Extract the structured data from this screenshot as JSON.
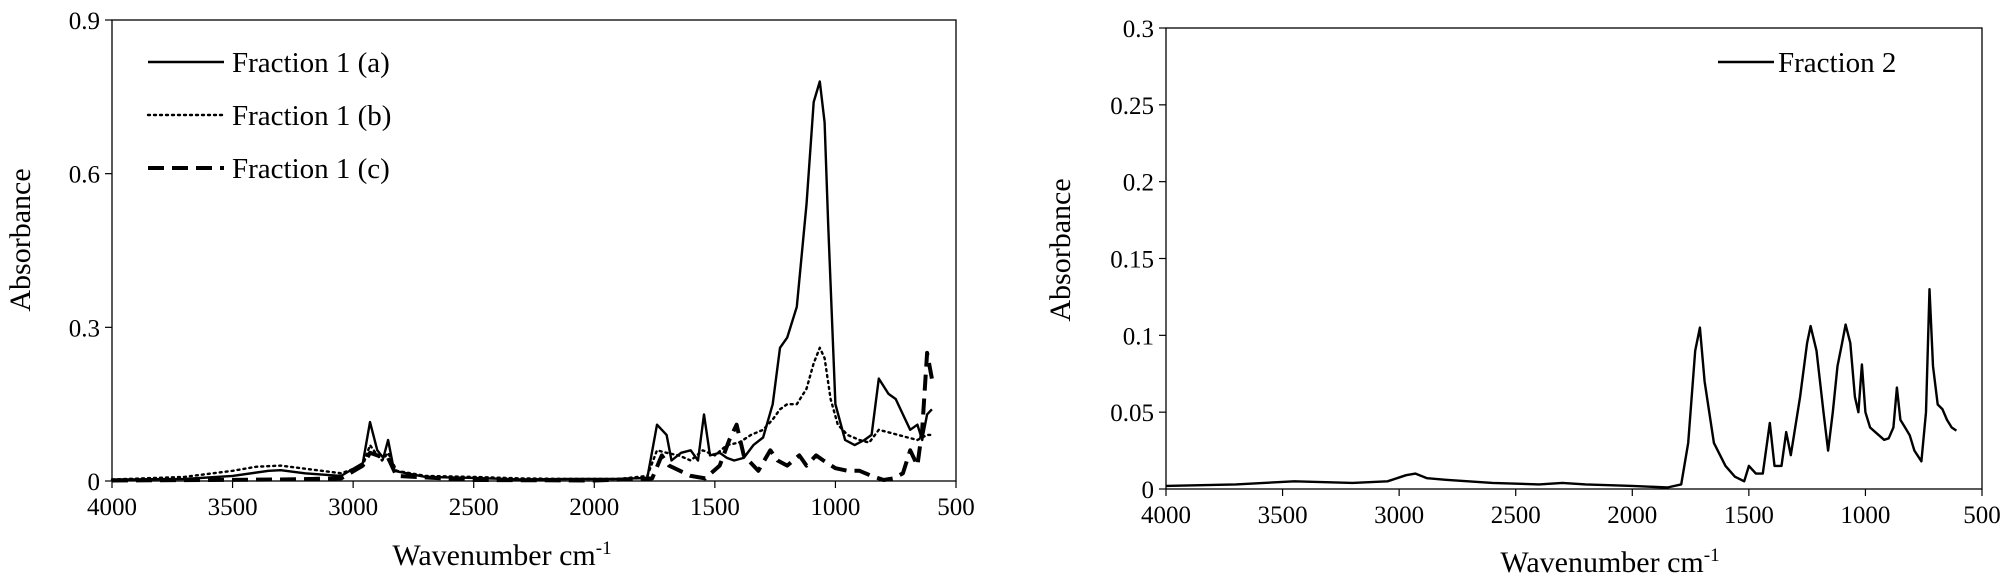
{
  "chart_data": [
    {
      "type": "line",
      "xlabel": "Wavenumber cm",
      "xlabel_sup": "-1",
      "ylabel": "Absorbance",
      "xlim": [
        4000,
        500
      ],
      "ylim": [
        0,
        0.9
      ],
      "x_reversed": true,
      "xticks": [
        4000,
        3500,
        3000,
        2500,
        2000,
        1500,
        1000,
        500
      ],
      "yticks": [
        0,
        0.3,
        0.6,
        0.9
      ],
      "ytick_labels": [
        "0",
        "0.3",
        "0.6",
        "0.9"
      ],
      "grid": false,
      "legend_position": "top-left",
      "series": [
        {
          "name": "Fraction 1 (a)",
          "style": "solid",
          "color": "#000000",
          "points": [
            [
              4000,
              0.003
            ],
            [
              3700,
              0.004
            ],
            [
              3500,
              0.01
            ],
            [
              3350,
              0.02
            ],
            [
              3300,
              0.021
            ],
            [
              3200,
              0.015
            ],
            [
              3050,
              0.01
            ],
            [
              2960,
              0.035
            ],
            [
              2930,
              0.115
            ],
            [
              2900,
              0.06
            ],
            [
              2875,
              0.045
            ],
            [
              2855,
              0.08
            ],
            [
              2830,
              0.02
            ],
            [
              2700,
              0.008
            ],
            [
              2500,
              0.006
            ],
            [
              2300,
              0.003
            ],
            [
              2100,
              0.004
            ],
            [
              1900,
              0.004
            ],
            [
              1780,
              0.006
            ],
            [
              1740,
              0.11
            ],
            [
              1700,
              0.09
            ],
            [
              1680,
              0.04
            ],
            [
              1640,
              0.055
            ],
            [
              1600,
              0.06
            ],
            [
              1570,
              0.04
            ],
            [
              1545,
              0.13
            ],
            [
              1520,
              0.05
            ],
            [
              1480,
              0.055
            ],
            [
              1450,
              0.045
            ],
            [
              1420,
              0.04
            ],
            [
              1380,
              0.045
            ],
            [
              1340,
              0.07
            ],
            [
              1300,
              0.085
            ],
            [
              1260,
              0.15
            ],
            [
              1230,
              0.26
            ],
            [
              1200,
              0.28
            ],
            [
              1160,
              0.34
            ],
            [
              1120,
              0.54
            ],
            [
              1090,
              0.74
            ],
            [
              1065,
              0.78
            ],
            [
              1045,
              0.7
            ],
            [
              1030,
              0.5
            ],
            [
              1000,
              0.15
            ],
            [
              960,
              0.08
            ],
            [
              920,
              0.07
            ],
            [
              880,
              0.08
            ],
            [
              850,
              0.09
            ],
            [
              820,
              0.2
            ],
            [
              780,
              0.17
            ],
            [
              750,
              0.16
            ],
            [
              720,
              0.13
            ],
            [
              690,
              0.1
            ],
            [
              660,
              0.11
            ],
            [
              640,
              0.08
            ],
            [
              620,
              0.13
            ],
            [
              600,
              0.14
            ]
          ]
        },
        {
          "name": "Fraction 1 (b)",
          "style": "dotted",
          "color": "#000000",
          "points": [
            [
              4000,
              0.003
            ],
            [
              3700,
              0.008
            ],
            [
              3500,
              0.02
            ],
            [
              3400,
              0.028
            ],
            [
              3300,
              0.03
            ],
            [
              3200,
              0.024
            ],
            [
              3050,
              0.015
            ],
            [
              2960,
              0.03
            ],
            [
              2930,
              0.07
            ],
            [
              2900,
              0.05
            ],
            [
              2880,
              0.04
            ],
            [
              2855,
              0.055
            ],
            [
              2820,
              0.02
            ],
            [
              2700,
              0.01
            ],
            [
              2500,
              0.008
            ],
            [
              2300,
              0.005
            ],
            [
              2100,
              0.004
            ],
            [
              1900,
              0.004
            ],
            [
              1780,
              0.01
            ],
            [
              1740,
              0.06
            ],
            [
              1700,
              0.055
            ],
            [
              1650,
              0.05
            ],
            [
              1600,
              0.04
            ],
            [
              1550,
              0.06
            ],
            [
              1500,
              0.05
            ],
            [
              1450,
              0.07
            ],
            [
              1400,
              0.075
            ],
            [
              1350,
              0.09
            ],
            [
              1300,
              0.1
            ],
            [
              1260,
              0.12
            ],
            [
              1230,
              0.14
            ],
            [
              1200,
              0.15
            ],
            [
              1160,
              0.15
            ],
            [
              1120,
              0.18
            ],
            [
              1090,
              0.23
            ],
            [
              1065,
              0.26
            ],
            [
              1045,
              0.24
            ],
            [
              1020,
              0.16
            ],
            [
              990,
              0.11
            ],
            [
              950,
              0.09
            ],
            [
              900,
              0.08
            ],
            [
              860,
              0.075
            ],
            [
              820,
              0.1
            ],
            [
              780,
              0.095
            ],
            [
              740,
              0.09
            ],
            [
              700,
              0.085
            ],
            [
              660,
              0.08
            ],
            [
              620,
              0.09
            ],
            [
              600,
              0.09
            ]
          ]
        },
        {
          "name": "Fraction 1 (c)",
          "style": "dashed",
          "color": "#000000",
          "points": [
            [
              4000,
              0.001
            ],
            [
              3600,
              0.002
            ],
            [
              3300,
              0.003
            ],
            [
              3050,
              0.005
            ],
            [
              2960,
              0.03
            ],
            [
              2930,
              0.055
            ],
            [
              2900,
              0.05
            ],
            [
              2855,
              0.045
            ],
            [
              2820,
              0.01
            ],
            [
              2500,
              0.002
            ],
            [
              2000,
              0.001
            ],
            [
              1760,
              0.005
            ],
            [
              1720,
              0.05
            ],
            [
              1690,
              0.03
            ],
            [
              1600,
              0.01
            ],
            [
              1540,
              0.005
            ],
            [
              1480,
              0.03
            ],
            [
              1440,
              0.08
            ],
            [
              1410,
              0.11
            ],
            [
              1380,
              0.05
            ],
            [
              1320,
              0.02
            ],
            [
              1270,
              0.06
            ],
            [
              1240,
              0.04
            ],
            [
              1200,
              0.03
            ],
            [
              1150,
              0.05
            ],
            [
              1120,
              0.03
            ],
            [
              1080,
              0.05
            ],
            [
              1050,
              0.04
            ],
            [
              1000,
              0.025
            ],
            [
              950,
              0.02
            ],
            [
              900,
              0.02
            ],
            [
              850,
              0.01
            ],
            [
              800,
              0.002
            ],
            [
              760,
              0.005
            ],
            [
              720,
              0.015
            ],
            [
              690,
              0.06
            ],
            [
              660,
              0.03
            ],
            [
              640,
              0.1
            ],
            [
              620,
              0.25
            ],
            [
              600,
              0.2
            ]
          ]
        }
      ]
    },
    {
      "type": "line",
      "xlabel": "Wavenumber cm",
      "xlabel_sup": "-1",
      "ylabel": "Absorbance",
      "xlim": [
        4000,
        500
      ],
      "ylim": [
        0,
        0.3
      ],
      "x_reversed": true,
      "xticks": [
        4000,
        3500,
        3000,
        2500,
        2000,
        1500,
        1000,
        500
      ],
      "yticks": [
        0,
        0.05,
        0.1,
        0.15,
        0.2,
        0.25,
        0.3
      ],
      "ytick_labels": [
        "0",
        "0.05",
        "0.1",
        "0.15",
        "0.2",
        "0.25",
        "0.3"
      ],
      "grid": false,
      "legend_position": "top-right",
      "series": [
        {
          "name": "Fraction 2",
          "style": "solid",
          "color": "#000000",
          "points": [
            [
              4000,
              0.002
            ],
            [
              3700,
              0.003
            ],
            [
              3450,
              0.005
            ],
            [
              3200,
              0.004
            ],
            [
              3050,
              0.005
            ],
            [
              2970,
              0.009
            ],
            [
              2930,
              0.01
            ],
            [
              2880,
              0.007
            ],
            [
              2800,
              0.006
            ],
            [
              2600,
              0.004
            ],
            [
              2400,
              0.003
            ],
            [
              2300,
              0.004
            ],
            [
              2200,
              0.003
            ],
            [
              2000,
              0.002
            ],
            [
              1850,
              0.001
            ],
            [
              1790,
              0.003
            ],
            [
              1760,
              0.03
            ],
            [
              1730,
              0.09
            ],
            [
              1710,
              0.105
            ],
            [
              1690,
              0.07
            ],
            [
              1650,
              0.03
            ],
            [
              1600,
              0.015
            ],
            [
              1560,
              0.008
            ],
            [
              1520,
              0.005
            ],
            [
              1500,
              0.015
            ],
            [
              1470,
              0.01
            ],
            [
              1440,
              0.01
            ],
            [
              1410,
              0.043
            ],
            [
              1390,
              0.015
            ],
            [
              1360,
              0.015
            ],
            [
              1340,
              0.037
            ],
            [
              1320,
              0.022
            ],
            [
              1280,
              0.06
            ],
            [
              1250,
              0.095
            ],
            [
              1235,
              0.106
            ],
            [
              1210,
              0.09
            ],
            [
              1180,
              0.05
            ],
            [
              1160,
              0.025
            ],
            [
              1140,
              0.05
            ],
            [
              1120,
              0.08
            ],
            [
              1100,
              0.095
            ],
            [
              1085,
              0.107
            ],
            [
              1065,
              0.095
            ],
            [
              1045,
              0.06
            ],
            [
              1030,
              0.05
            ],
            [
              1015,
              0.081
            ],
            [
              1000,
              0.05
            ],
            [
              980,
              0.04
            ],
            [
              950,
              0.036
            ],
            [
              920,
              0.032
            ],
            [
              900,
              0.033
            ],
            [
              880,
              0.04
            ],
            [
              865,
              0.066
            ],
            [
              850,
              0.045
            ],
            [
              830,
              0.04
            ],
            [
              810,
              0.035
            ],
            [
              790,
              0.025
            ],
            [
              760,
              0.018
            ],
            [
              740,
              0.05
            ],
            [
              725,
              0.13
            ],
            [
              710,
              0.08
            ],
            [
              690,
              0.055
            ],
            [
              670,
              0.052
            ],
            [
              650,
              0.045
            ],
            [
              630,
              0.04
            ],
            [
              610,
              0.038
            ]
          ]
        }
      ]
    }
  ]
}
